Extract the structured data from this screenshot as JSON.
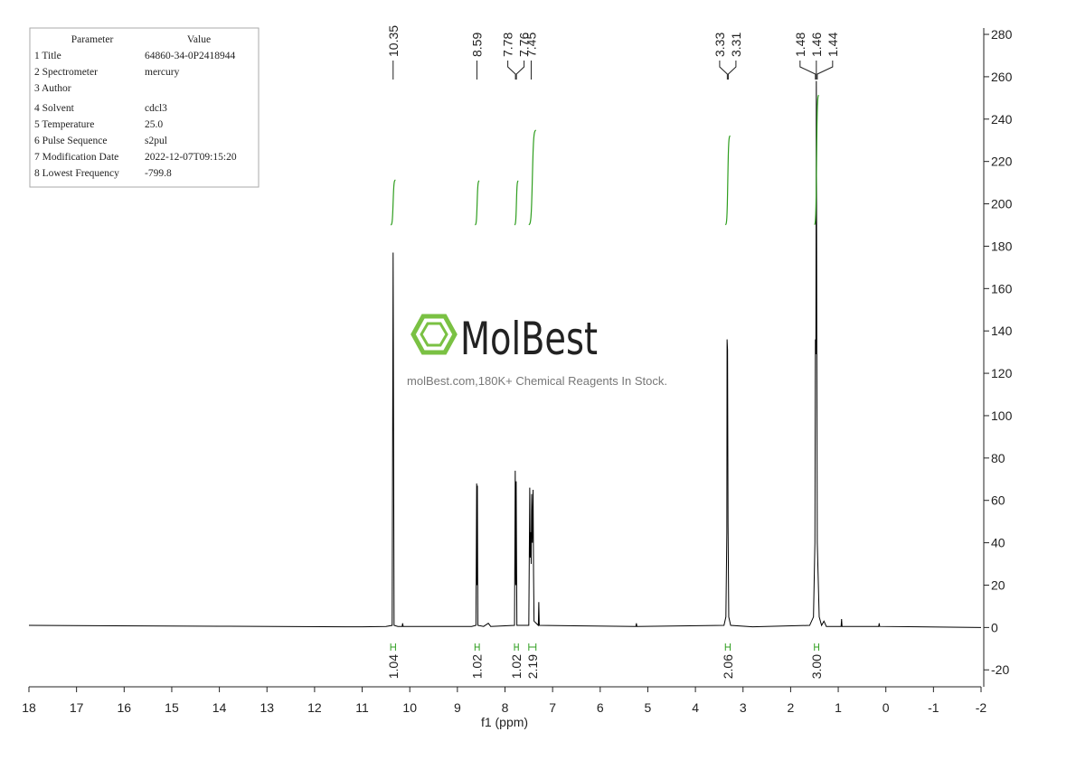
{
  "parameters": {
    "headers": [
      "Parameter",
      "Value"
    ],
    "rows": [
      [
        "1 Title",
        "64860-34-0P2418944"
      ],
      [
        "2 Spectrometer",
        "mercury"
      ],
      [
        "3 Author"
      ],
      [
        "4 Solvent",
        "cdcl3"
      ],
      [
        "5 Temperature",
        "25.0"
      ],
      [
        "6 Pulse Sequence",
        "s2pul"
      ],
      [
        "7 Modification Date",
        "2022-12-07T09:15:20"
      ],
      [
        "8 Lowest Frequency",
        "-799.8"
      ]
    ]
  },
  "watermark": {
    "logo": "MolBest",
    "tagline": "molBest.com,180K+ Chemical Reagents In Stock."
  },
  "chart_data": {
    "type": "line",
    "x_label": "f1 (ppm)",
    "color": "#000000",
    "xlim": [
      18,
      -2
    ],
    "xticks": [
      18,
      17,
      16,
      15,
      14,
      13,
      12,
      11,
      10,
      9,
      8,
      7,
      6,
      5,
      4,
      3,
      2,
      1,
      0,
      -1,
      -2
    ],
    "ylim": [
      -28,
      283
    ],
    "yticks": [
      -20,
      0,
      20,
      40,
      60,
      80,
      100,
      120,
      140,
      160,
      180,
      200,
      220,
      240,
      260,
      280
    ],
    "x": [
      18,
      14,
      11,
      10.5,
      10.37,
      10.35,
      10.33,
      10.25,
      10.16,
      10.15,
      10.14,
      8.7,
      8.61,
      8.595,
      8.588,
      8.58,
      8.57,
      8.45,
      8.35,
      8.3,
      7.8,
      7.785,
      7.775,
      7.765,
      7.75,
      7.5,
      7.48,
      7.47,
      7.46,
      7.45,
      7.44,
      7.425,
      7.41,
      7.4,
      7.39,
      7.3,
      7.29,
      7.28,
      5.25,
      5.24,
      5.23,
      3.4,
      3.36,
      3.34,
      3.335,
      3.325,
      3.315,
      3.3,
      3.26,
      2.8,
      1.6,
      1.52,
      1.49,
      1.48,
      1.47,
      1.46,
      1.45,
      1.44,
      1.4,
      1.35,
      1.3,
      1.25,
      0.94,
      0.93,
      0.92,
      0.15,
      0.14,
      0.13,
      -2
    ],
    "values": [
      1,
      0.6,
      0.3,
      0.5,
      1,
      177,
      1,
      0.5,
      0.5,
      2,
      0.5,
      0.5,
      1,
      68,
      20,
      67,
      1,
      0.5,
      2,
      0.5,
      1,
      74,
      20,
      69,
      1,
      1,
      66,
      33,
      45,
      30,
      63,
      40,
      65,
      25,
      3,
      1,
      12,
      1,
      0.5,
      2,
      0.5,
      1,
      5,
      45,
      136,
      131,
      49,
      5,
      1,
      0.3,
      1,
      5,
      40,
      136,
      129,
      258,
      129,
      40,
      5,
      1,
      3,
      0.5,
      0.5,
      4,
      0.5,
      0.5,
      2,
      0.5,
      0
    ],
    "peak_labels": [
      10.35,
      8.59,
      7.78,
      7.76,
      7.45,
      3.33,
      3.31,
      1.48,
      1.46,
      1.44
    ],
    "integral_color": "#2f9e1f",
    "integrals": {
      "ranges": [
        [
          10.4,
          10.3
        ],
        [
          8.63,
          8.54
        ],
        [
          7.8,
          7.72
        ],
        [
          7.5,
          7.35
        ],
        [
          3.37,
          3.27
        ],
        [
          1.5,
          1.41
        ]
      ],
      "values": [
        1.04,
        1.02,
        1.02,
        2.19,
        2.06,
        3
      ],
      "value_labels": [
        "1.04",
        "1.02",
        "1.02",
        "2.19",
        "2.06",
        "3.00"
      ]
    }
  }
}
